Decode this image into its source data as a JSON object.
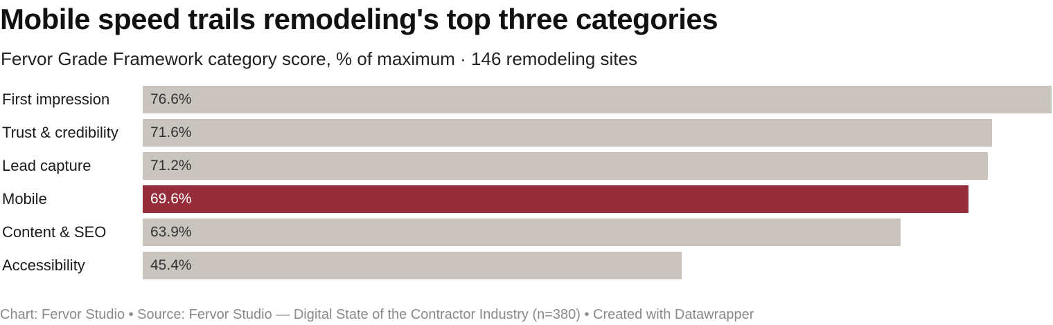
{
  "header": {
    "title": "Mobile speed trails remodeling's top three categories",
    "subtitle": "Fervor Grade Framework category score, % of maximum · 146 remodeling sites"
  },
  "chart_data": {
    "type": "bar",
    "orientation": "horizontal",
    "categories": [
      "First impression",
      "Trust & credibility",
      "Lead capture",
      "Mobile",
      "Content & SEO",
      "Accessibility"
    ],
    "values": [
      76.6,
      71.6,
      71.2,
      69.6,
      63.9,
      45.4
    ],
    "value_labels": [
      "76.6%",
      "71.6%",
      "71.2%",
      "69.6%",
      "63.9%",
      "45.4%"
    ],
    "highlight": "Mobile",
    "colors": {
      "default_bar": "#c9c5be",
      "highlight_bar": "#962d3a",
      "default_value_text": "#333333",
      "highlight_value_text": "#ffffff"
    },
    "grid": false,
    "legend": false
  },
  "footer": {
    "credit": "Chart: Fervor Studio • Source: Fervor Studio — Digital State of the Contractor Industry (n=380) • Created with Datawrapper"
  }
}
